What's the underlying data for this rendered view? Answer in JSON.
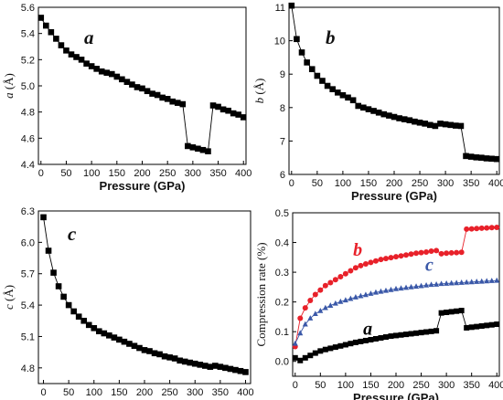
{
  "chart_data": [
    {
      "type": "line",
      "panel_label": "a",
      "xlabel": "Pressure (GPa)",
      "ylabel": "a (Å)",
      "ylabel_symbol": "a",
      "ylabel_unit": " (Å)",
      "xlim": [
        -5,
        405
      ],
      "ylim": [
        4.4,
        5.6
      ],
      "xticks": [
        0,
        50,
        100,
        150,
        200,
        250,
        300,
        350,
        400
      ],
      "yticks": [
        4.4,
        4.6,
        4.8,
        5.0,
        5.2,
        5.4,
        5.6
      ],
      "grid": false,
      "series": [
        {
          "color": "#000000",
          "marker": "square",
          "x": [
            0,
            10,
            20,
            30,
            40,
            50,
            60,
            70,
            80,
            90,
            100,
            110,
            120,
            130,
            140,
            150,
            160,
            170,
            180,
            190,
            200,
            210,
            220,
            230,
            240,
            250,
            260,
            270,
            280,
            290,
            300,
            310,
            320,
            330,
            340,
            350,
            360,
            370,
            380,
            390,
            400
          ],
          "y": [
            5.52,
            5.46,
            5.41,
            5.36,
            5.31,
            5.27,
            5.24,
            5.22,
            5.2,
            5.17,
            5.15,
            5.13,
            5.11,
            5.1,
            5.09,
            5.07,
            5.05,
            5.03,
            5.01,
            4.99,
            4.98,
            4.96,
            4.94,
            4.93,
            4.91,
            4.9,
            4.88,
            4.87,
            4.86,
            4.54,
            4.53,
            4.52,
            4.51,
            4.5,
            4.85,
            4.84,
            4.82,
            4.81,
            4.79,
            4.78,
            4.76
          ]
        }
      ]
    },
    {
      "type": "line",
      "panel_label": "b",
      "xlabel": "Pressure (GPa)",
      "ylabel": "b (Å)",
      "ylabel_symbol": "b",
      "ylabel_unit": " (Å)",
      "xlim": [
        -5,
        405
      ],
      "ylim": [
        6,
        11
      ],
      "xticks": [
        0,
        50,
        100,
        150,
        200,
        250,
        300,
        350,
        400
      ],
      "yticks": [
        6,
        7,
        8,
        9,
        10,
        11
      ],
      "grid": false,
      "series": [
        {
          "color": "#000000",
          "marker": "square",
          "x": [
            0,
            10,
            20,
            30,
            40,
            50,
            60,
            70,
            80,
            90,
            100,
            110,
            120,
            130,
            140,
            150,
            160,
            170,
            180,
            190,
            200,
            210,
            220,
            230,
            240,
            250,
            260,
            270,
            280,
            290,
            300,
            310,
            320,
            330,
            340,
            350,
            360,
            370,
            380,
            390,
            400
          ],
          "y": [
            11.05,
            10.05,
            9.65,
            9.35,
            9.15,
            8.95,
            8.8,
            8.65,
            8.55,
            8.45,
            8.37,
            8.3,
            8.22,
            8.05,
            8.0,
            7.95,
            7.9,
            7.85,
            7.8,
            7.76,
            7.72,
            7.68,
            7.65,
            7.62,
            7.58,
            7.55,
            7.52,
            7.48,
            7.45,
            7.52,
            7.5,
            7.48,
            7.46,
            7.45,
            6.55,
            6.53,
            6.51,
            6.5,
            6.48,
            6.47,
            6.46
          ]
        }
      ]
    },
    {
      "type": "line",
      "panel_label": "c",
      "xlabel": "Pressure (GPa)",
      "ylabel": "c (Å)",
      "ylabel_symbol": "c",
      "ylabel_unit": " (Å)",
      "xlim": [
        -10,
        410
      ],
      "ylim": [
        4.65,
        6.3
      ],
      "xticks": [
        0,
        50,
        100,
        150,
        200,
        250,
        300,
        350,
        400
      ],
      "yticks": [
        4.8,
        5.1,
        5.4,
        5.7,
        6.0,
        6.3
      ],
      "grid": false,
      "series": [
        {
          "color": "#000000",
          "marker": "square",
          "x": [
            0,
            10,
            20,
            30,
            40,
            50,
            60,
            70,
            80,
            90,
            100,
            110,
            120,
            130,
            140,
            150,
            160,
            170,
            180,
            190,
            200,
            210,
            220,
            230,
            240,
            250,
            260,
            270,
            280,
            290,
            300,
            310,
            320,
            330,
            340,
            350,
            360,
            370,
            380,
            390,
            400
          ],
          "y": [
            6.24,
            5.92,
            5.71,
            5.58,
            5.48,
            5.4,
            5.34,
            5.29,
            5.25,
            5.21,
            5.18,
            5.15,
            5.13,
            5.11,
            5.09,
            5.07,
            5.05,
            5.03,
            5.01,
            4.99,
            4.97,
            4.96,
            4.94,
            4.93,
            4.91,
            4.9,
            4.89,
            4.87,
            4.86,
            4.85,
            4.84,
            4.83,
            4.82,
            4.81,
            4.82,
            4.81,
            4.8,
            4.79,
            4.78,
            4.77,
            4.76
          ]
        }
      ]
    },
    {
      "type": "line",
      "xlabel": "Pressure (GPa)",
      "ylabel": "Compression rate (%)",
      "xlim": [
        -5,
        405
      ],
      "ylim": [
        -0.05,
        0.5
      ],
      "xticks": [
        0,
        50,
        100,
        150,
        200,
        250,
        300,
        350,
        400
      ],
      "yticks": [
        0.0,
        0.1,
        0.2,
        0.3,
        0.4,
        0.5
      ],
      "grid": false,
      "series": [
        {
          "name": "b",
          "color": "#e8212a",
          "marker": "circle",
          "label_at": [
            115,
            0.355
          ],
          "x": [
            0,
            10,
            20,
            30,
            40,
            50,
            60,
            70,
            80,
            90,
            100,
            110,
            120,
            130,
            140,
            150,
            160,
            170,
            180,
            190,
            200,
            210,
            220,
            230,
            240,
            250,
            260,
            270,
            280,
            290,
            300,
            310,
            320,
            330,
            340,
            350,
            360,
            370,
            380,
            390,
            400
          ],
          "y": [
            0.05,
            0.145,
            0.18,
            0.205,
            0.225,
            0.24,
            0.255,
            0.265,
            0.275,
            0.285,
            0.295,
            0.305,
            0.315,
            0.322,
            0.328,
            0.333,
            0.338,
            0.343,
            0.346,
            0.349,
            0.352,
            0.355,
            0.358,
            0.361,
            0.364,
            0.366,
            0.368,
            0.371,
            0.373,
            0.362,
            0.364,
            0.365,
            0.366,
            0.367,
            0.445,
            0.446,
            0.447,
            0.448,
            0.449,
            0.45,
            0.451
          ]
        },
        {
          "name": "c",
          "color": "#3a58a8",
          "marker": "triangle",
          "label_at": [
            258,
            0.305
          ],
          "x": [
            0,
            10,
            20,
            30,
            40,
            50,
            60,
            70,
            80,
            90,
            100,
            110,
            120,
            130,
            140,
            150,
            160,
            170,
            180,
            190,
            200,
            210,
            220,
            230,
            240,
            250,
            260,
            270,
            280,
            290,
            300,
            310,
            320,
            330,
            340,
            350,
            360,
            370,
            380,
            390,
            400
          ],
          "y": [
            0.06,
            0.095,
            0.125,
            0.145,
            0.16,
            0.17,
            0.18,
            0.188,
            0.195,
            0.201,
            0.206,
            0.211,
            0.216,
            0.22,
            0.224,
            0.228,
            0.232,
            0.235,
            0.238,
            0.241,
            0.244,
            0.246,
            0.248,
            0.25,
            0.252,
            0.254,
            0.256,
            0.258,
            0.259,
            0.261,
            0.262,
            0.263,
            0.264,
            0.265,
            0.266,
            0.267,
            0.268,
            0.269,
            0.27,
            0.271,
            0.272
          ]
        },
        {
          "name": "a",
          "color": "#000000",
          "marker": "square",
          "label_at": [
            135,
            0.09
          ],
          "x": [
            0,
            10,
            20,
            30,
            40,
            50,
            60,
            70,
            80,
            90,
            100,
            110,
            120,
            130,
            140,
            150,
            160,
            170,
            180,
            190,
            200,
            210,
            220,
            230,
            240,
            250,
            260,
            270,
            280,
            290,
            300,
            310,
            320,
            330,
            340,
            350,
            360,
            370,
            380,
            390,
            400
          ],
          "y": [
            0.012,
            0.003,
            0.012,
            0.02,
            0.028,
            0.035,
            0.04,
            0.044,
            0.048,
            0.052,
            0.056,
            0.06,
            0.064,
            0.067,
            0.07,
            0.073,
            0.076,
            0.079,
            0.082,
            0.085,
            0.087,
            0.089,
            0.091,
            0.093,
            0.095,
            0.097,
            0.099,
            0.101,
            0.103,
            0.163,
            0.165,
            0.167,
            0.169,
            0.171,
            0.113,
            0.115,
            0.117,
            0.119,
            0.121,
            0.123,
            0.125
          ]
        }
      ]
    }
  ]
}
